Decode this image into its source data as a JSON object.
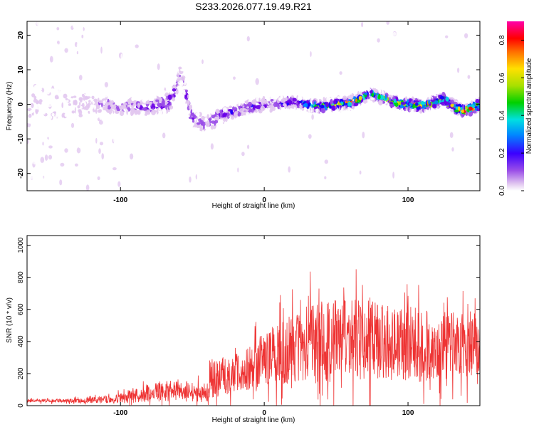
{
  "chart_data": [
    {
      "type": "heatmap",
      "title": "S233.2026.077.19.49.R21",
      "xlabel": "Height of straight line (km)",
      "ylabel": "Frequency (Hz)",
      "xlim": [
        -165,
        150
      ],
      "ylim": [
        -25,
        24
      ],
      "xticks": [
        -100,
        0,
        100
      ],
      "xtick_labels": [
        "-100",
        "0",
        "100"
      ],
      "yticks": [
        20,
        10,
        0,
        -10,
        -20
      ],
      "ytick_labels": [
        "20",
        "10",
        "0",
        "-10",
        "-20"
      ],
      "colorbar": {
        "label": "Normalized spectral amplitude",
        "range": [
          0.0,
          0.9
        ],
        "ticks": [
          0.0,
          0.2,
          0.4,
          0.6,
          0.8
        ],
        "tick_labels": [
          "0.0",
          "0.2",
          "0.4",
          "0.6",
          "0.8"
        ],
        "colormap": [
          "#ffffff",
          "#e2c8f0",
          "#9a4ee8",
          "#6a00e8",
          "#1200ff",
          "#0088ff",
          "#00e0e0",
          "#00d000",
          "#a8e000",
          "#ffe000",
          "#ff7000",
          "#ff0000",
          "#ff00aa"
        ]
      },
      "ridge": {
        "x": [
          -165,
          -140,
          -120,
          -100,
          -80,
          -65,
          -58,
          -50,
          -40,
          -30,
          -20,
          -10,
          0,
          20,
          40,
          60,
          75,
          90,
          110,
          125,
          135,
          140,
          145,
          150
        ],
        "y": [
          0,
          0,
          0,
          -0.5,
          -1,
          1,
          9,
          -4,
          -6,
          -3,
          -2,
          -1,
          0,
          0.5,
          -0.5,
          0.5,
          3,
          0.5,
          -0.5,
          1.5,
          -1.5,
          -2,
          -1,
          0
        ],
        "band_halfwidth_hz": [
          14,
          14,
          7,
          4,
          4,
          5,
          5,
          4,
          5,
          4,
          3,
          3,
          3,
          2.5,
          2,
          2,
          2,
          2,
          2,
          2,
          2,
          2,
          2,
          2
        ],
        "peak_amplitude": [
          0.1,
          0.1,
          0.15,
          0.2,
          0.25,
          0.25,
          0.2,
          0.25,
          0.2,
          0.25,
          0.3,
          0.3,
          0.3,
          0.3,
          0.6,
          0.75,
          0.55,
          0.6,
          0.7,
          0.75,
          0.85,
          0.85,
          0.8,
          0.75
        ]
      }
    },
    {
      "type": "line",
      "title": "",
      "xlabel": "Height of straight line (km)",
      "ylabel": "SNR (10 * v/v)",
      "xlim": [
        -165,
        150
      ],
      "ylim": [
        0,
        1060
      ],
      "xticks": [
        -100,
        0,
        100
      ],
      "xtick_labels": [
        "-100",
        "0",
        "100"
      ],
      "yticks": [
        0,
        200,
        400,
        600,
        800,
        1000
      ],
      "ytick_labels": [
        "0",
        "200",
        "400",
        "600",
        "800",
        "1000"
      ],
      "color": "#ee3333",
      "envelope": {
        "x": [
          -165,
          -140,
          -120,
          -100,
          -90,
          -80,
          -70,
          -60,
          -50,
          -40,
          -38,
          -30,
          -20,
          -10,
          0,
          10,
          20,
          30,
          40,
          50,
          60,
          70,
          80,
          90,
          100,
          110,
          120,
          130,
          140,
          150
        ],
        "mean": [
          30,
          30,
          35,
          45,
          60,
          80,
          95,
          90,
          85,
          80,
          160,
          170,
          200,
          240,
          300,
          330,
          360,
          380,
          400,
          420,
          420,
          410,
          400,
          390,
          380,
          370,
          360,
          370,
          380,
          400
        ],
        "spread": [
          15,
          15,
          25,
          40,
          60,
          80,
          90,
          80,
          80,
          70,
          180,
          150,
          160,
          200,
          220,
          260,
          300,
          330,
          360,
          350,
          350,
          340,
          330,
          320,
          320,
          310,
          300,
          300,
          280,
          250
        ]
      }
    }
  ]
}
